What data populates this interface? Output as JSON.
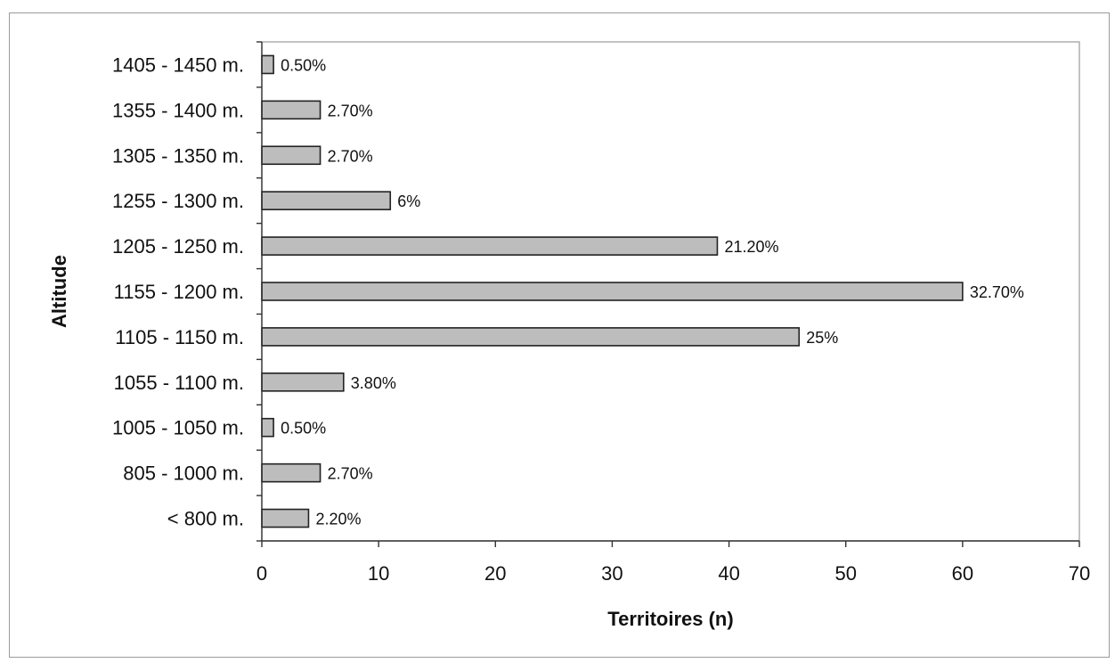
{
  "chart_data": {
    "type": "bar",
    "orientation": "horizontal",
    "categories": [
      "< 800 m.",
      "805 - 1000 m.",
      "1005 - 1050 m.",
      "1055 - 1100 m.",
      "1105 - 1150 m.",
      "1155 - 1200 m.",
      "1205 - 1250 m.",
      "1255 - 1300 m.",
      "1305 - 1350 m.",
      "1355 - 1400 m.",
      "1405 - 1450 m."
    ],
    "values": [
      4,
      5,
      1,
      7,
      46,
      60,
      39,
      11,
      5,
      5,
      1
    ],
    "data_labels": [
      "2.20%",
      "2.70%",
      "0.50%",
      "3.80%",
      "25%",
      "32.70%",
      "21.20%",
      "6%",
      "2.70%",
      "2.70%",
      "0.50%"
    ],
    "xlabel": "Territoires (n)",
    "ylabel": "Altitude",
    "xlim": [
      0,
      70
    ],
    "xticks": [
      0,
      10,
      20,
      30,
      40,
      50,
      60,
      70
    ],
    "grid": false,
    "legend": "none",
    "colors": {
      "bar_fill": "#bdbdbd",
      "bar_stroke": "#222222"
    }
  }
}
